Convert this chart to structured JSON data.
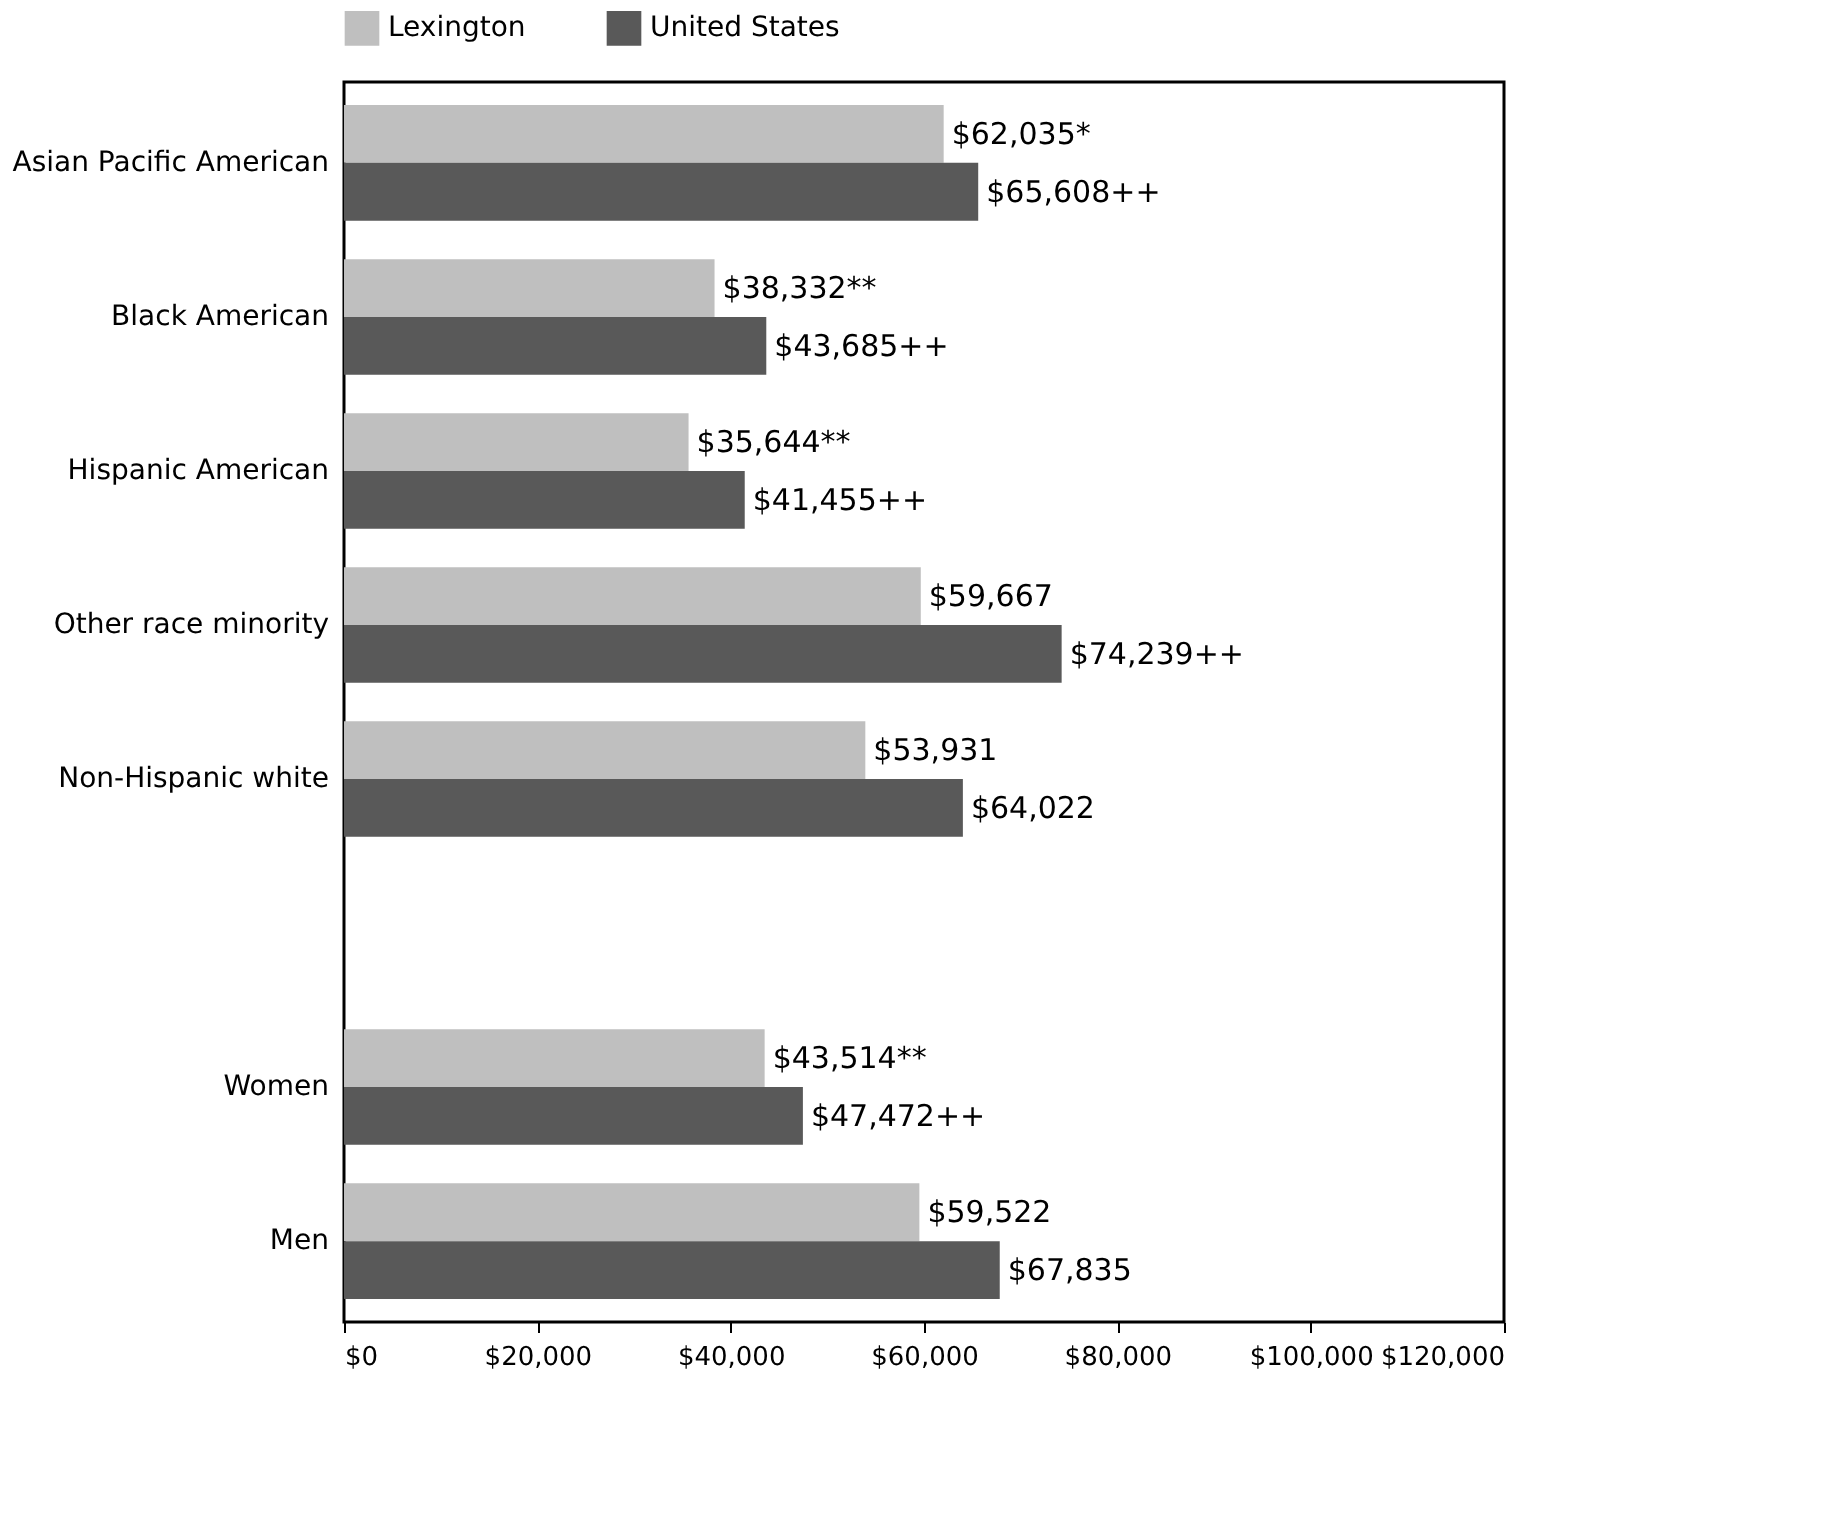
{
  "chart_data": {
    "type": "bar",
    "orientation": "horizontal",
    "categories": [
      "Asian Pacific American",
      "Black American",
      "Hispanic American",
      "Other race minority",
      "Non-Hispanic white",
      null,
      "Women",
      "Men"
    ],
    "series": [
      {
        "name": "Lexington",
        "color": "#bfbfbf",
        "values": [
          62035,
          38332,
          35644,
          59667,
          53931,
          null,
          43514,
          59522
        ],
        "value_labels": [
          "$62,035*",
          "$38,332**",
          "$35,644**",
          "$59,667",
          "$53,931",
          null,
          "$43,514**",
          "$59,522"
        ]
      },
      {
        "name": "United States",
        "color": "#595959",
        "values": [
          65608,
          43685,
          41455,
          74239,
          64022,
          null,
          47472,
          67835
        ],
        "value_labels": [
          "$65,608++",
          "$43,685++",
          "$41,455++",
          "$74,239++",
          "$64,022",
          null,
          "$47,472++",
          "$67,835"
        ]
      }
    ],
    "xlim": [
      0,
      120000
    ],
    "xticks": [
      {
        "value": 0,
        "label": "$0"
      },
      {
        "value": 20000,
        "label": "$20,000"
      },
      {
        "value": 40000,
        "label": "$40,000"
      },
      {
        "value": 60000,
        "label": "$60,000"
      },
      {
        "value": 80000,
        "label": "$80,000"
      },
      {
        "value": 100000,
        "label": "$100,000"
      },
      {
        "value": 120000,
        "label": "$120,000"
      }
    ],
    "legend": "top",
    "grid": false
  }
}
